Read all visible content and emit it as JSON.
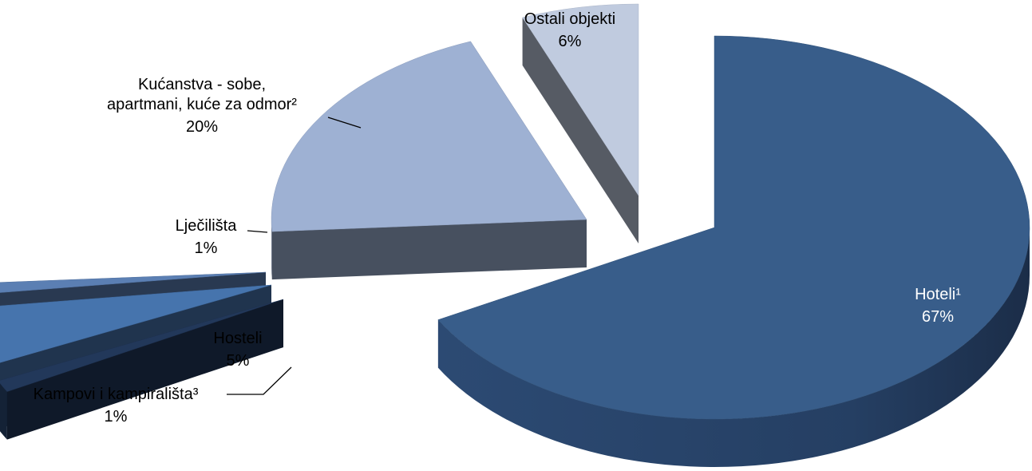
{
  "chart_data": {
    "type": "pie",
    "title": "",
    "slices": [
      {
        "name": "Hoteli¹",
        "value": 67,
        "value_label": "67%",
        "color": "#385d8a"
      },
      {
        "name": "Kampovi i kampirališta³",
        "value": 1,
        "value_label": "1%",
        "color": "#22385a"
      },
      {
        "name": "Hosteli",
        "value": 5,
        "value_label": "5%",
        "color": "#4674ad"
      },
      {
        "name": "Lječilišta",
        "value": 1,
        "value_label": "1%",
        "color": "#5b7fb3"
      },
      {
        "name": "Kućanstva - sobe, apartmani, kuće za odmor²",
        "value": 20,
        "value_label": "20%",
        "color": "#9eb1d3"
      },
      {
        "name": "Ostali objekti",
        "value": 6,
        "value_label": "6%",
        "color": "#c0cbdf"
      }
    ],
    "legend": "none",
    "style": "3d-exploded"
  }
}
